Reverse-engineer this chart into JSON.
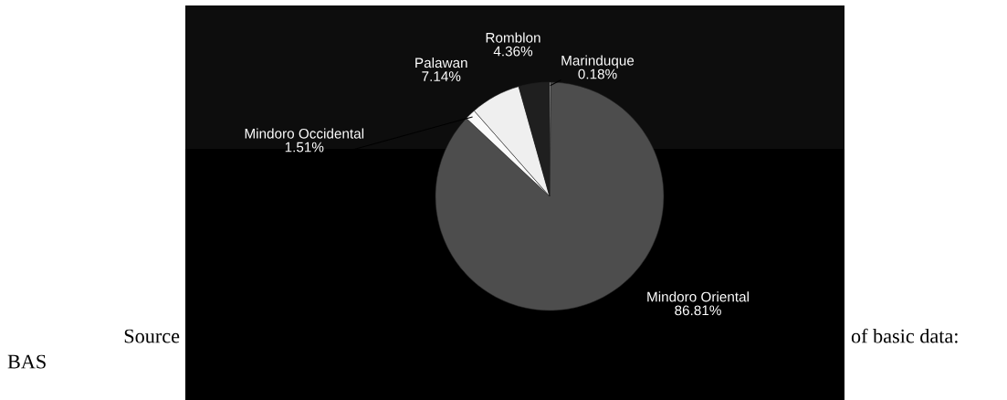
{
  "chart_data": {
    "type": "pie",
    "categories": [
      "Marinduque",
      "Mindoro Oriental",
      "Mindoro Occidental",
      "Palawan",
      "Romblon"
    ],
    "values": [
      0.18,
      86.81,
      1.51,
      7.14,
      4.36
    ],
    "value_labels": [
      "0.18%",
      "86.81%",
      "1.51%",
      "7.14%",
      "4.36%"
    ],
    "colors": [
      "#ffffff",
      "#4d4d4d",
      "#fafafa",
      "#efefef",
      "#1f1f1f"
    ],
    "annotations": [
      "Source",
      "of basic data:",
      "BAS"
    ]
  }
}
